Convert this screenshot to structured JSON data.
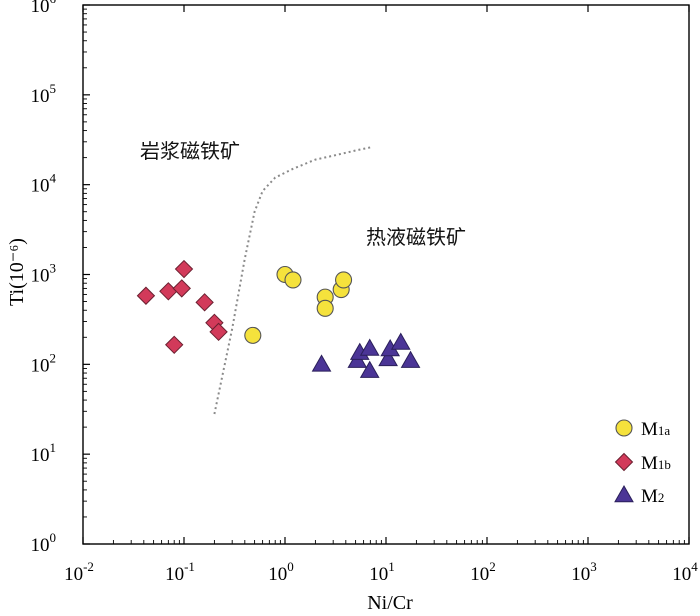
{
  "chart_data": {
    "type": "scatter",
    "xscale": "log",
    "yscale": "log",
    "xlabel": "Ni/Cr",
    "ylabel": "Ti(10⁻⁶)",
    "xlim": [
      0.01,
      10000
    ],
    "ylim": [
      1,
      1000000
    ],
    "x_ticks": [
      {
        "base": "10",
        "exp": "-2"
      },
      {
        "base": "10",
        "exp": "-1"
      },
      {
        "base": "10",
        "exp": "0"
      },
      {
        "base": "10",
        "exp": "1"
      },
      {
        "base": "10",
        "exp": "2"
      },
      {
        "base": "10",
        "exp": "3"
      },
      {
        "base": "10",
        "exp": "4"
      }
    ],
    "y_ticks": [
      {
        "base": "10",
        "exp": "0"
      },
      {
        "base": "10",
        "exp": "1"
      },
      {
        "base": "10",
        "exp": "2"
      },
      {
        "base": "10",
        "exp": "3"
      },
      {
        "base": "10",
        "exp": "4"
      },
      {
        "base": "10",
        "exp": "5"
      },
      {
        "base": "10",
        "exp": "6"
      }
    ],
    "grid": false,
    "legend_position": "bottom-right",
    "regions": [
      {
        "label": "岩浆磁铁矿"
      },
      {
        "label": "热液磁铁矿"
      }
    ],
    "boundary": [
      [
        0.2,
        28
      ],
      [
        0.3,
        250
      ],
      [
        0.4,
        1500
      ],
      [
        0.5,
        5000
      ],
      [
        0.6,
        8500
      ],
      [
        0.8,
        12000
      ],
      [
        1.2,
        15000
      ],
      [
        2.0,
        19000
      ],
      [
        3.0,
        21000
      ],
      [
        5.0,
        24000
      ],
      [
        7.0,
        26000
      ]
    ],
    "series": [
      {
        "name": "M",
        "name_sub": "1a",
        "marker": "circle",
        "color": "#f5e23c",
        "points": [
          [
            0.48,
            210
          ],
          [
            1.0,
            1000
          ],
          [
            1.2,
            870
          ],
          [
            2.5,
            560
          ],
          [
            2.5,
            420
          ],
          [
            3.6,
            680
          ],
          [
            3.8,
            870
          ]
        ]
      },
      {
        "name": "M",
        "name_sub": "1b",
        "marker": "diamond",
        "color": "#d23a5a",
        "points": [
          [
            0.042,
            580
          ],
          [
            0.07,
            650
          ],
          [
            0.095,
            700
          ],
          [
            0.1,
            1150
          ],
          [
            0.08,
            165
          ],
          [
            0.16,
            490
          ],
          [
            0.2,
            290
          ],
          [
            0.22,
            230
          ]
        ]
      },
      {
        "name": "M",
        "name_sub": "2",
        "marker": "triangle",
        "color": "#4b3596",
        "points": [
          [
            2.3,
            100
          ],
          [
            5.2,
            110
          ],
          [
            5.5,
            135
          ],
          [
            6.9,
            150
          ],
          [
            6.9,
            85
          ],
          [
            10.5,
            115
          ],
          [
            11.0,
            148
          ],
          [
            14.0,
            175
          ],
          [
            17.5,
            110
          ]
        ]
      }
    ]
  }
}
